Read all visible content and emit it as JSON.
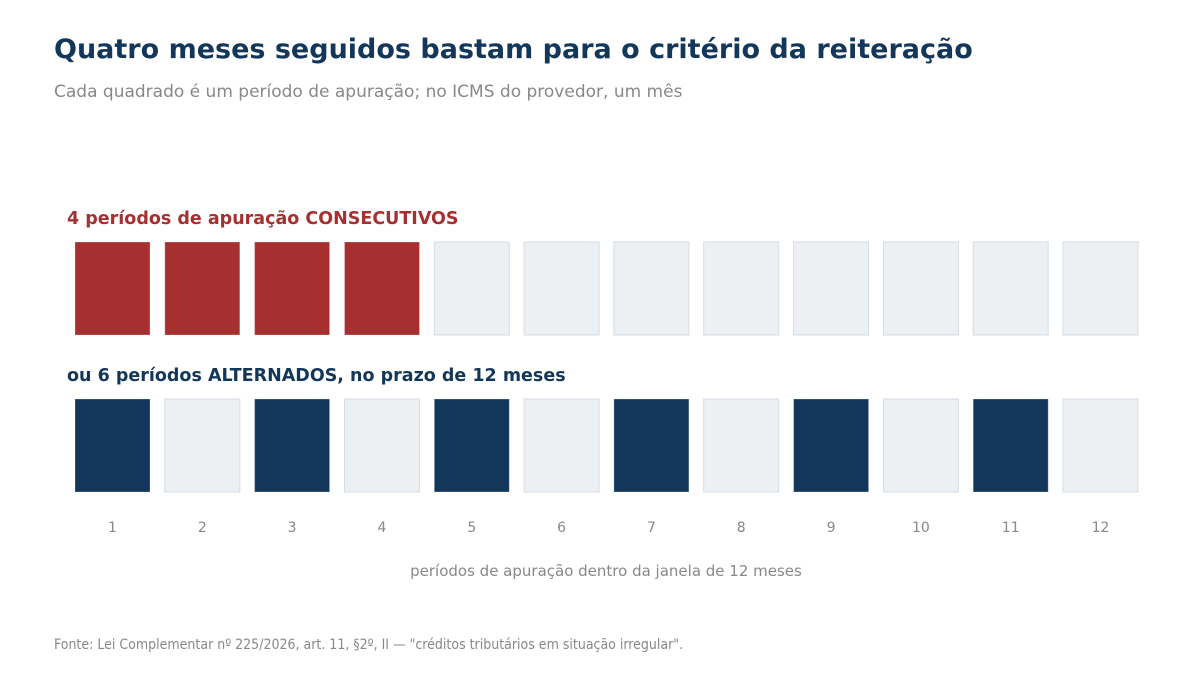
{
  "title": "Quatro meses seguidos bastam para o critério da reiteração",
  "subtitle": "Cada quadrado é um período de apuração; no ICMS do provedor, um mês",
  "source": "Fonte: Lei Complementar nº 225/2026, art. 11, §2º, II — \"créditos tributários em situação irregular\".",
  "colors": {
    "consecutive": "#a63030",
    "alternate": "#13375b",
    "inactive_fill": "#ecf0f3",
    "inactive_border": "#d5dde4",
    "tick_text": "#888888"
  },
  "chart_data": {
    "type": "heatmap",
    "categories": [
      "1",
      "2",
      "3",
      "4",
      "5",
      "6",
      "7",
      "8",
      "9",
      "10",
      "11",
      "12"
    ],
    "xlabel": "períodos de apuração dentro da janela de 12 meses",
    "series": [
      {
        "name": "4 períodos de apuração CONSECUTIVOS",
        "values": [
          1,
          1,
          1,
          1,
          0,
          0,
          0,
          0,
          0,
          0,
          0,
          0
        ]
      },
      {
        "name": "ou 6 períodos ALTERNADOS, no prazo de 12 meses",
        "values": [
          1,
          0,
          1,
          0,
          1,
          0,
          1,
          0,
          1,
          0,
          1,
          0
        ]
      }
    ]
  }
}
